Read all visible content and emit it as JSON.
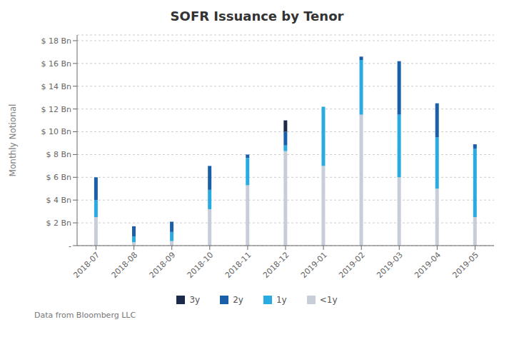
{
  "chart_data": {
    "type": "bar",
    "stacked": true,
    "title": "SOFR Issuance by Tenor",
    "ylabel": "Monthly Notional",
    "categories": [
      "2018-07",
      "2018-08",
      "2018-09",
      "2018-10",
      "2018-11",
      "2018-12",
      "2019-01",
      "2019-02",
      "2019-03",
      "2019-04",
      "2019-05"
    ],
    "series": [
      {
        "name": "<1y",
        "color": "#c8ced8",
        "values": [
          2.5,
          0.3,
          0.4,
          3.2,
          5.3,
          8.3,
          7.0,
          11.5,
          6.0,
          5.0,
          2.5
        ]
      },
      {
        "name": "1y",
        "color": "#29abe2",
        "values": [
          1.5,
          0.5,
          0.8,
          1.7,
          2.4,
          0.5,
          5.2,
          4.8,
          5.5,
          4.5,
          6.0
        ]
      },
      {
        "name": "2y",
        "color": "#1a5fa8",
        "values": [
          2.0,
          0.9,
          0.9,
          2.1,
          0.3,
          1.2,
          0.0,
          0.3,
          4.7,
          3.0,
          0.4
        ]
      },
      {
        "name": "3y",
        "color": "#1b2a4a",
        "values": [
          0.0,
          0.0,
          0.0,
          0.0,
          0.0,
          1.0,
          0.0,
          0.0,
          0.0,
          0.0,
          0.0
        ]
      }
    ],
    "ylim": [
      0,
      18.5
    ],
    "yticks": [
      {
        "value": 0,
        "label": " -"
      },
      {
        "value": 2,
        "label": "$ 2 Bn"
      },
      {
        "value": 4,
        "label": "$ 4 Bn"
      },
      {
        "value": 6,
        "label": "$ 6 Bn"
      },
      {
        "value": 8,
        "label": "$ 8 Bn"
      },
      {
        "value": 10,
        "label": "$ 10 Bn"
      },
      {
        "value": 12,
        "label": "$ 12 Bn"
      },
      {
        "value": 14,
        "label": "$ 14 Bn"
      },
      {
        "value": 16,
        "label": "$ 16 Bn"
      },
      {
        "value": 18,
        "label": "$ 18 Bn"
      }
    ],
    "grid": true,
    "legend": "bottom",
    "annotations": [
      "Data from Bloomberg LLC"
    ]
  }
}
